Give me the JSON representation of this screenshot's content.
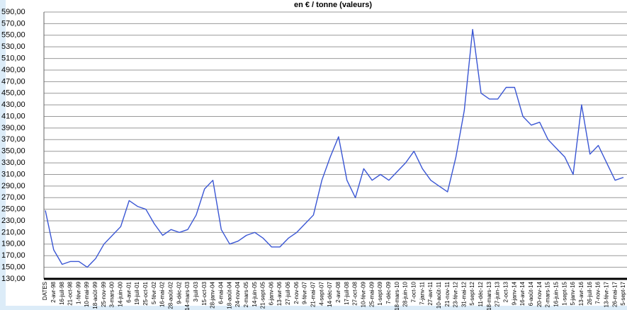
{
  "chart_data": {
    "type": "line",
    "title": "en € / tonne (valeurs)",
    "categories": [
      "DATES",
      "2-avr-98",
      "16-juil-98",
      "21-oct-98",
      "1-févr-99",
      "10-mai-99",
      "18-août-99",
      "25-nov-99",
      "3-mars-00",
      "14-juin-00",
      "6-avr-01",
      "19-juil-01",
      "25-oct-01",
      "5-févr-02",
      "16-mai-02",
      "28-août-02",
      "9-déc-02",
      "14-mars-03",
      "3-juil-03",
      "15-oct-03",
      "28-janv-04",
      "6-mai-04",
      "18-août-04",
      "24-nov-04",
      "2-mars-05",
      "14-juin-05",
      "21-sept-05",
      "6-janv-06",
      "13-avr-06",
      "27-juil-06",
      "2-nov-06",
      "9-févr-07",
      "21-mai-07",
      "4-sept-07",
      "14-déc-07",
      "2-avr-08",
      "17-juil-08",
      "27-oct-08",
      "10-févr-09",
      "25-mai-09",
      "1-sept-09",
      "7-déc-09",
      "18-mars-10",
      "28-juin-10",
      "7-oct-10",
      "7-janv-11",
      "27-avr-11",
      "10-août-11",
      "21-nov-11",
      "23-févr-12",
      "31-mai-12",
      "5-sept-12",
      "11-déc-12",
      "18-mars-13",
      "27-juin-13",
      "2-oct-13",
      "9-janv-14",
      "16-avr-14",
      "6-août-14",
      "20-nov-14",
      "2-mars-15",
      "16-juin-15",
      "1-sept-15",
      "5-janv-16",
      "13-avr-16",
      "26-juil-16",
      "7-nov-16",
      "13-févr-17",
      "26-mai-17",
      "5-sept-17"
    ],
    "series": [
      {
        "name": "valeurs",
        "color": "#3a56d4",
        "values": [
          248,
          180,
          155,
          160,
          160,
          150,
          165,
          190,
          205,
          220,
          265,
          255,
          250,
          225,
          205,
          215,
          210,
          215,
          240,
          285,
          300,
          215,
          190,
          195,
          205,
          210,
          200,
          185,
          185,
          200,
          210,
          225,
          240,
          300,
          340,
          375,
          300,
          270,
          320,
          300,
          310,
          300,
          315,
          330,
          350,
          320,
          300,
          290,
          280,
          340,
          420,
          560,
          450,
          440,
          440,
          460,
          460,
          410,
          395,
          400,
          370,
          355,
          340,
          310,
          430,
          345,
          360,
          330,
          300,
          305
        ]
      }
    ],
    "ylim": [
      130,
      590
    ],
    "yticks": [
      {
        "value": 130,
        "label": "130,00"
      },
      {
        "value": 150,
        "label": "150,00"
      },
      {
        "value": 170,
        "label": "170,00"
      },
      {
        "value": 190,
        "label": "190,00"
      },
      {
        "value": 210,
        "label": "210,00"
      },
      {
        "value": 230,
        "label": "230,00"
      },
      {
        "value": 250,
        "label": "250,00"
      },
      {
        "value": 270,
        "label": "270,00"
      },
      {
        "value": 290,
        "label": "290,00"
      },
      {
        "value": 310,
        "label": "310,00"
      },
      {
        "value": 330,
        "label": "330,00"
      },
      {
        "value": 350,
        "label": "350,00"
      },
      {
        "value": 370,
        "label": "370,00"
      },
      {
        "value": 390,
        "label": "390,00"
      },
      {
        "value": 410,
        "label": "410,00"
      },
      {
        "value": 430,
        "label": "430,00"
      },
      {
        "value": 450,
        "label": "450,00"
      },
      {
        "value": 470,
        "label": "470,00"
      },
      {
        "value": 490,
        "label": "490,00"
      },
      {
        "value": 510,
        "label": "510,00"
      },
      {
        "value": 530,
        "label": "530,00"
      },
      {
        "value": 550,
        "label": "550,00"
      },
      {
        "value": 570,
        "label": "570,00"
      },
      {
        "value": 590,
        "label": "590,00"
      }
    ],
    "grid": true
  }
}
